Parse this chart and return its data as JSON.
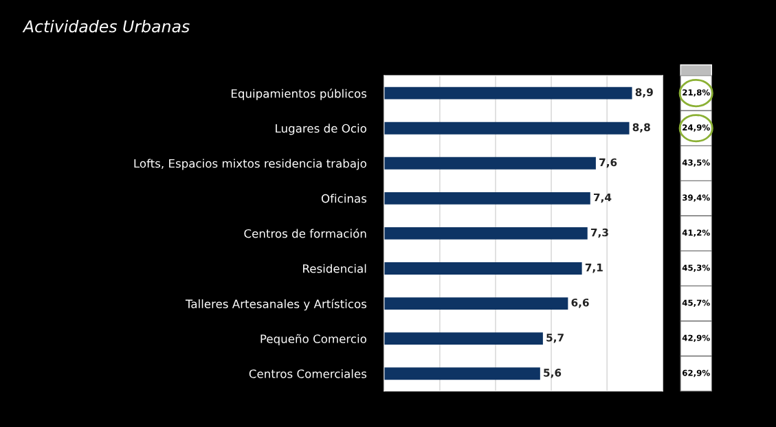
{
  "chart_data": {
    "type": "bar",
    "orientation": "horizontal",
    "title": "Actividades Urbanas",
    "categories": [
      "Equipamientos públicos",
      "Lugares de Ocio",
      "Lofts, Espacios mixtos residencia trabajo",
      "Oficinas",
      "Centros de formación",
      "Residencial",
      "Talleres Artesanales y Artísticos",
      "Pequeño Comercio",
      "Centros Comerciales"
    ],
    "values": [
      8.9,
      8.8,
      7.6,
      7.4,
      7.3,
      7.1,
      6.6,
      5.7,
      5.6
    ],
    "value_labels": [
      "8,9",
      "8,8",
      "7,6",
      "7,4",
      "7,3",
      "7,1",
      "6,6",
      "5,7",
      "5,6"
    ],
    "color": "#0e3464",
    "xlim": [
      0,
      10
    ],
    "xticks": [
      {
        "value": 0,
        "label": null
      },
      {
        "value": 2,
        "label": null
      },
      {
        "value": 4,
        "label": null
      },
      {
        "value": 6,
        "label": null
      },
      {
        "value": 8,
        "label": null
      },
      {
        "value": 10,
        "label": null
      }
    ],
    "tick_labels": "y",
    "grid": "x",
    "annotations": [
      "21,8%",
      "24,9%",
      "43,5%",
      "39,4%",
      "41,2%",
      "45,3%",
      "45,7%",
      "42,9%",
      "62,9%"
    ]
  }
}
